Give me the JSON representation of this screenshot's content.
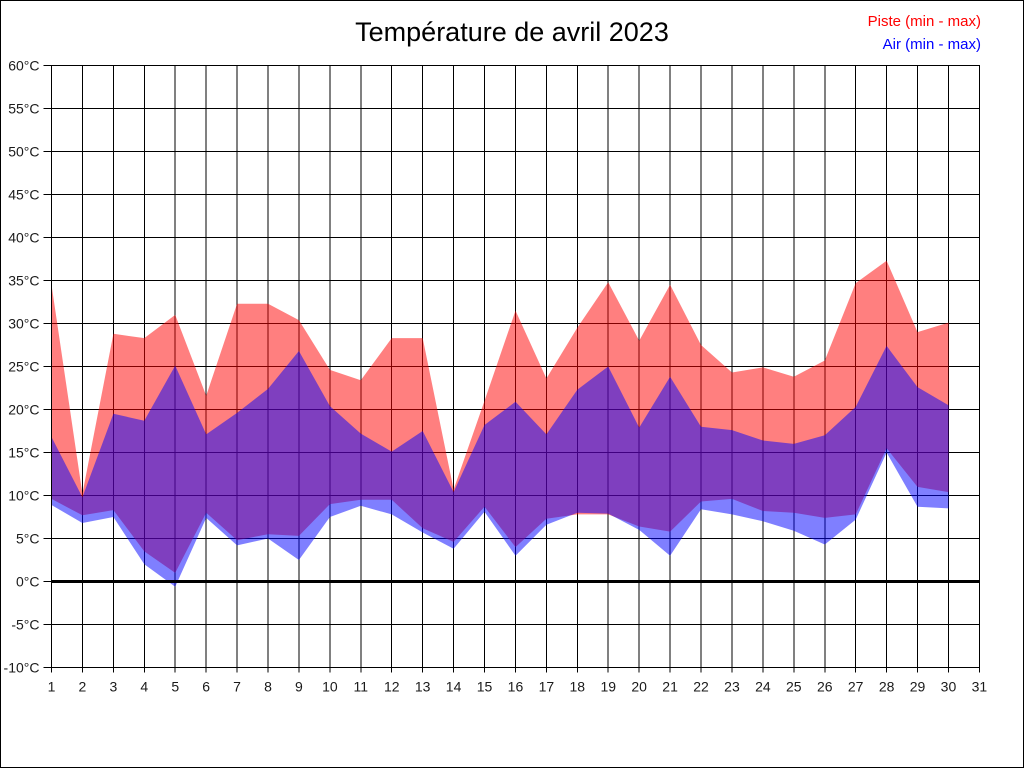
{
  "title": "Température de avril 2023",
  "legend": {
    "piste_label": "Piste (min - max)",
    "air_label": "Air (min - max)"
  },
  "colors": {
    "piste_fill": "rgba(255,0,0,0.5)",
    "air_fill": "rgba(0,0,255,0.5)",
    "piste_text": "#ff0000",
    "air_text": "#0000ff",
    "grid": "#000000",
    "axis_text": "#1a1a1a"
  },
  "chart_data": {
    "type": "area",
    "title": "Température de avril 2023",
    "xlabel": "",
    "ylabel": "",
    "x_axis": {
      "tick_labels": [
        "1",
        "2",
        "3",
        "4",
        "5",
        "6",
        "7",
        "8",
        "9",
        "10",
        "11",
        "12",
        "13",
        "14",
        "15",
        "16",
        "17",
        "18",
        "19",
        "20",
        "21",
        "22",
        "23",
        "24",
        "25",
        "26",
        "27",
        "28",
        "29",
        "30",
        "31"
      ],
      "data_days": [
        1,
        2,
        3,
        4,
        5,
        6,
        7,
        8,
        9,
        10,
        11,
        12,
        13,
        14,
        15,
        16,
        17,
        18,
        19,
        20,
        21,
        22,
        23,
        24,
        25,
        26,
        27,
        28,
        29,
        30
      ]
    },
    "y_axis": {
      "min": -10,
      "max": 60,
      "step": 5,
      "unit": "°C",
      "tick_labels": [
        "60°C",
        "55°C",
        "50°C",
        "45°C",
        "40°C",
        "35°C",
        "30°C",
        "25°C",
        "20°C",
        "15°C",
        "10°C",
        "5°C",
        "0°C",
        "-5°C",
        "-10°C"
      ]
    },
    "grid": true,
    "zero_line": 0,
    "legend_position": "top-right",
    "series": [
      {
        "name": "Piste (min - max)",
        "kind": "band",
        "min": [
          9.6,
          7.7,
          8.3,
          3.5,
          1.0,
          8.0,
          4.8,
          5.5,
          5.3,
          9.0,
          9.5,
          9.5,
          6.2,
          4.6,
          8.7,
          4.0,
          7.3,
          7.8,
          7.8,
          6.4,
          5.8,
          9.3,
          9.6,
          8.2,
          8.0,
          7.4,
          7.8,
          15.5,
          11.0,
          10.4
        ],
        "max": [
          34.5,
          10.2,
          28.8,
          28.3,
          31.0,
          21.6,
          32.3,
          32.3,
          30.4,
          24.6,
          23.4,
          28.3,
          28.3,
          10.7,
          21.0,
          31.5,
          23.6,
          29.5,
          34.8,
          28.0,
          34.5,
          27.5,
          24.3,
          24.9,
          23.8,
          25.7,
          34.7,
          37.3,
          29.0,
          30.1
        ]
      },
      {
        "name": "Air (min - max)",
        "kind": "band",
        "min": [
          8.9,
          6.8,
          7.5,
          2.0,
          -0.6,
          7.4,
          4.2,
          5.0,
          2.5,
          7.5,
          8.8,
          7.8,
          5.7,
          3.8,
          8.1,
          3.0,
          6.6,
          8.0,
          7.9,
          6.0,
          3.0,
          8.4,
          7.8,
          7.0,
          5.9,
          4.3,
          7.2,
          15.0,
          8.7,
          8.5
        ],
        "max": [
          16.8,
          9.8,
          19.5,
          18.7,
          25.1,
          17.1,
          19.6,
          22.4,
          26.8,
          20.4,
          17.2,
          15.1,
          17.5,
          10.4,
          18.2,
          20.9,
          17.1,
          22.3,
          25.0,
          17.9,
          23.8,
          18.0,
          17.6,
          16.4,
          16.0,
          17.0,
          20.3,
          27.4,
          22.6,
          20.5
        ]
      }
    ]
  }
}
